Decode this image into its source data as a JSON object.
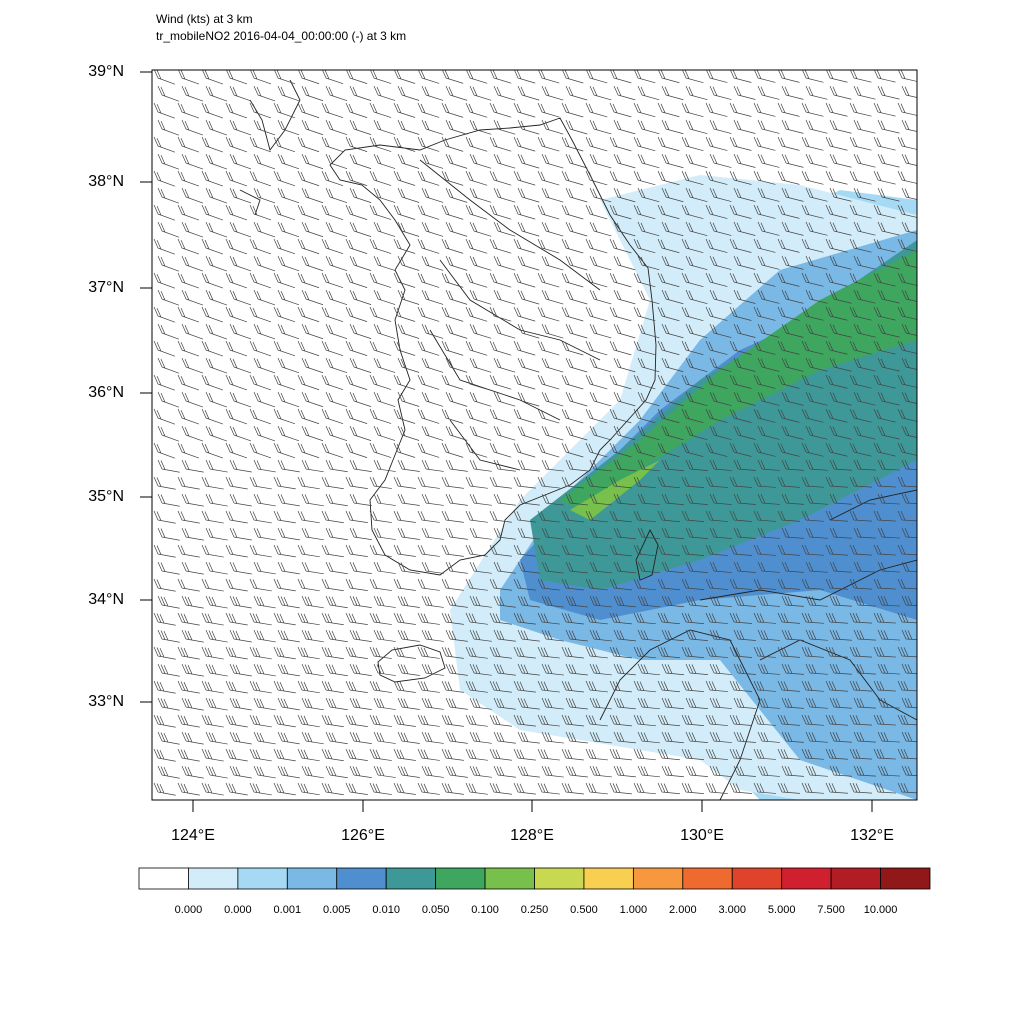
{
  "header": {
    "line1": "Wind   (kts)     at   3 km",
    "line2": "tr_mobileNO2   2016-04-04_00:00:00   (-)     at   3 km"
  },
  "map": {
    "lat_ticks": [
      "39°N",
      "38°N",
      "37°N",
      "36°N",
      "35°N",
      "34°N",
      "33°N"
    ],
    "lon_ticks": [
      "124°E",
      "126°E",
      "128°E",
      "130°E",
      "132°E"
    ]
  },
  "colorbar": {
    "colors": [
      "#ffffff",
      "#d2edf9",
      "#a6daf4",
      "#7ab8e6",
      "#4f8fd0",
      "#3f9898",
      "#3ea65e",
      "#78c04c",
      "#c8d850",
      "#f8cf50",
      "#f8983e",
      "#ef6a2e",
      "#e0432c",
      "#d01f2e",
      "#b11c25",
      "#911818"
    ],
    "labels": [
      "0.000",
      "0.000",
      "0.001",
      "0.005",
      "0.010",
      "0.050",
      "0.100",
      "0.250",
      "0.500",
      "1.000",
      "2.000",
      "3.000",
      "5.000",
      "7.500",
      "10.000"
    ]
  }
}
